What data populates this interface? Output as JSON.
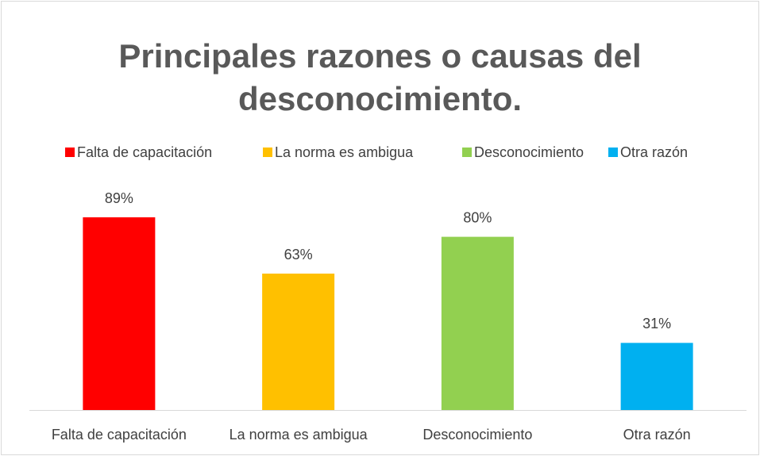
{
  "chart_data": {
    "type": "bar",
    "title": "Principales razones o causas del desconocimiento.",
    "categories": [
      "Falta de capacitación",
      "La norma es ambigua",
      "Desconocimiento",
      "Otra razón"
    ],
    "values": [
      89,
      63,
      80,
      31
    ],
    "value_labels": [
      "89%",
      "63%",
      "80%",
      "31%"
    ],
    "colors": [
      "#ff0000",
      "#ffc000",
      "#92d050",
      "#00b0f0"
    ],
    "legend": "top"
  }
}
